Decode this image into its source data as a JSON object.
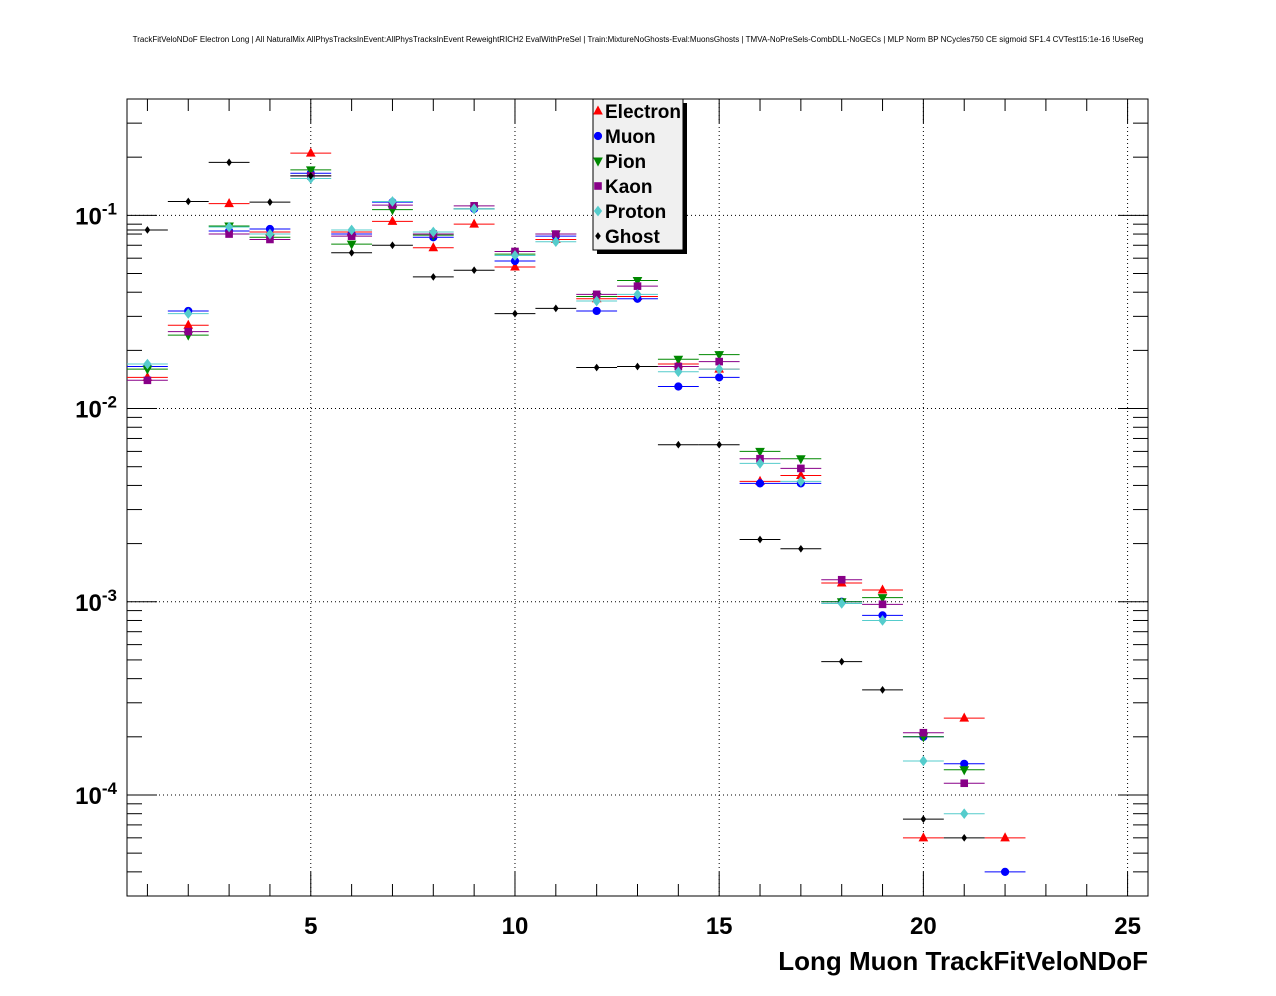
{
  "chart_data": {
    "type": "scatter",
    "title": "TrackFitVeloNDoF Electron Long | All NaturalMix AllPhysTracksInEvent:AllPhysTracksInEvent ReweightRICH2 EvalWithPreSel | Train:MixtureNoGhosts-Eval:MuonsGhosts | TMVA-NoPreSels-CombDLL-NoGECs | MLP Norm BP NCycles750 CE sigmoid SF1.4 CVTest15:1e-16 !UseReg",
    "xlabel": "Long Muon TrackFitVeloNDoF",
    "ylabel": "",
    "xlim": [
      0.5,
      25.5
    ],
    "ylim": [
      3e-05,
      0.4
    ],
    "yscale": "log",
    "grid": true,
    "legend_position": "top-center",
    "x_ticks": [
      5,
      10,
      15,
      20,
      25
    ],
    "y_ticks": [
      {
        "base": "10",
        "exp": "-1",
        "value": 0.1
      },
      {
        "base": "10",
        "exp": "-2",
        "value": 0.01
      },
      {
        "base": "10",
        "exp": "-3",
        "value": 0.001
      },
      {
        "base": "10",
        "exp": "-4",
        "value": 0.0001
      }
    ],
    "series": [
      {
        "name": "Electron",
        "color": "#ff0000",
        "marker": "triangle-up",
        "points": [
          [
            1,
            0.0145
          ],
          [
            2,
            0.027
          ],
          [
            3,
            0.115
          ],
          [
            4,
            0.082
          ],
          [
            5,
            0.21
          ],
          [
            6,
            0.082
          ],
          [
            7,
            0.093
          ],
          [
            8,
            0.068
          ],
          [
            9,
            0.09
          ],
          [
            10,
            0.054
          ],
          [
            11,
            0.075
          ],
          [
            12,
            0.037
          ],
          [
            13,
            0.038
          ],
          [
            14,
            0.017
          ],
          [
            15,
            0.016
          ],
          [
            16,
            0.0042
          ],
          [
            17,
            0.0045
          ],
          [
            18,
            0.00125
          ],
          [
            19,
            0.00115
          ],
          [
            20,
            6e-05
          ],
          [
            21,
            0.00025
          ],
          [
            22,
            6e-05
          ]
        ]
      },
      {
        "name": "Muon",
        "color": "#0000ff",
        "marker": "circle",
        "points": [
          [
            1,
            0.0165
          ],
          [
            2,
            0.032
          ],
          [
            3,
            0.083
          ],
          [
            4,
            0.085
          ],
          [
            5,
            0.165
          ],
          [
            6,
            0.08
          ],
          [
            7,
            0.117
          ],
          [
            8,
            0.077
          ],
          [
            9,
            0.108
          ],
          [
            10,
            0.058
          ],
          [
            11,
            0.078
          ],
          [
            12,
            0.032
          ],
          [
            13,
            0.037
          ],
          [
            14,
            0.013
          ],
          [
            15,
            0.0145
          ],
          [
            16,
            0.0041
          ],
          [
            17,
            0.0041
          ],
          [
            18,
            0.001
          ],
          [
            19,
            0.00085
          ],
          [
            20,
            0.0002
          ],
          [
            21,
            0.000145
          ],
          [
            22,
            4e-05
          ]
        ]
      },
      {
        "name": "Pion",
        "color": "#008800",
        "marker": "triangle-down",
        "points": [
          [
            1,
            0.016
          ],
          [
            2,
            0.024
          ],
          [
            3,
            0.088
          ],
          [
            4,
            0.077
          ],
          [
            5,
            0.172
          ],
          [
            6,
            0.071
          ],
          [
            7,
            0.107
          ],
          [
            8,
            0.079
          ],
          [
            9,
            0.108
          ],
          [
            10,
            0.063
          ],
          [
            11,
            0.08
          ],
          [
            12,
            0.038
          ],
          [
            13,
            0.046
          ],
          [
            14,
            0.018
          ],
          [
            15,
            0.019
          ],
          [
            16,
            0.006
          ],
          [
            17,
            0.0055
          ],
          [
            18,
            0.001
          ],
          [
            19,
            0.00105
          ],
          [
            20,
            0.0002
          ],
          [
            21,
            0.000135
          ]
        ]
      },
      {
        "name": "Kaon",
        "color": "#880088",
        "marker": "square",
        "points": [
          [
            1,
            0.014
          ],
          [
            2,
            0.025
          ],
          [
            3,
            0.08
          ],
          [
            4,
            0.075
          ],
          [
            5,
            0.16
          ],
          [
            6,
            0.078
          ],
          [
            7,
            0.113
          ],
          [
            8,
            0.08
          ],
          [
            9,
            0.112
          ],
          [
            10,
            0.065
          ],
          [
            11,
            0.08
          ],
          [
            12,
            0.039
          ],
          [
            13,
            0.043
          ],
          [
            14,
            0.0165
          ],
          [
            15,
            0.0175
          ],
          [
            16,
            0.0055
          ],
          [
            17,
            0.0049
          ],
          [
            18,
            0.0013
          ],
          [
            19,
            0.00097
          ],
          [
            20,
            0.00021
          ],
          [
            21,
            0.000115
          ]
        ]
      },
      {
        "name": "Proton",
        "color": "#55cccc",
        "marker": "diamond",
        "points": [
          [
            1,
            0.017
          ],
          [
            2,
            0.031
          ],
          [
            3,
            0.087
          ],
          [
            4,
            0.08
          ],
          [
            5,
            0.155
          ],
          [
            6,
            0.084
          ],
          [
            7,
            0.118
          ],
          [
            8,
            0.082
          ],
          [
            9,
            0.108
          ],
          [
            10,
            0.062
          ],
          [
            11,
            0.073
          ],
          [
            12,
            0.036
          ],
          [
            13,
            0.039
          ],
          [
            14,
            0.0155
          ],
          [
            15,
            0.016
          ],
          [
            16,
            0.0052
          ],
          [
            17,
            0.0042
          ],
          [
            18,
            0.00098
          ],
          [
            19,
            0.0008
          ],
          [
            20,
            0.00015
          ],
          [
            21,
            8e-05
          ]
        ]
      },
      {
        "name": "Ghost",
        "color": "#000000",
        "marker": "diamond-small",
        "points": [
          [
            1,
            0.084
          ],
          [
            2,
            0.118
          ],
          [
            3,
            0.188
          ],
          [
            4,
            0.117
          ],
          [
            5,
            0.16
          ],
          [
            6,
            0.064
          ],
          [
            7,
            0.07
          ],
          [
            8,
            0.048
          ],
          [
            9,
            0.052
          ],
          [
            10,
            0.031
          ],
          [
            11,
            0.033
          ],
          [
            12,
            0.0163
          ],
          [
            13,
            0.0165
          ],
          [
            14,
            0.0065
          ],
          [
            15,
            0.0065
          ],
          [
            16,
            0.0021
          ],
          [
            17,
            0.00188
          ],
          [
            18,
            0.00049
          ],
          [
            19,
            0.00035
          ],
          [
            20,
            7.5e-05
          ],
          [
            21,
            6e-05
          ]
        ]
      }
    ]
  }
}
